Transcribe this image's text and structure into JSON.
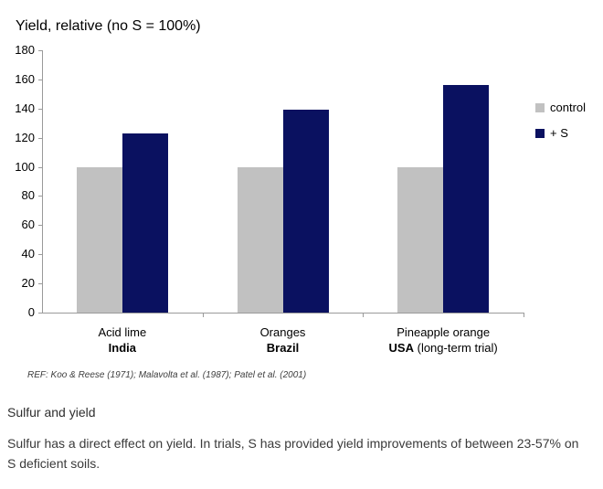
{
  "chart_data": {
    "type": "bar",
    "title": "Yield, relative (no S = 100%)",
    "categories": [
      {
        "crop": "Acid lime",
        "country": "India",
        "country_suffix": ""
      },
      {
        "crop": "Oranges",
        "country": "Brazil",
        "country_suffix": ""
      },
      {
        "crop": "Pineapple orange",
        "country": "USA",
        "country_suffix": " (long-term trial)"
      }
    ],
    "series": [
      {
        "name": "control",
        "color": "#c1c1c1",
        "values": [
          100,
          100,
          100
        ]
      },
      {
        "name": "+ S",
        "color": "#0a1160",
        "values": [
          123,
          139,
          156
        ]
      }
    ],
    "ylim": [
      0,
      180
    ],
    "ytick_step": 20,
    "xlabel": "",
    "ylabel": "",
    "grid": false,
    "legend_position": "right"
  },
  "ref_note": "REF: Koo & Reese (1971); Malavolta et al. (1987); Patel et al. (2001)",
  "section": {
    "heading": "Sulfur and yield",
    "body": "Sulfur has a direct effect on yield. In trials, S has provided yield improvements of between 23-57% on S deficient soils."
  }
}
